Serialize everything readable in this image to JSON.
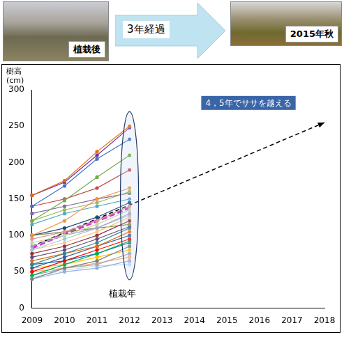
{
  "header": {
    "left_label": "植栽後",
    "arrow_label": "3年経過",
    "right_label": "2015年秋"
  },
  "chart_data": {
    "type": "line",
    "y_label": [
      "樹高",
      "(cm)"
    ],
    "annotations": [
      {
        "text": "4，5年でササを越える"
      },
      {
        "text": "植栽年"
      }
    ],
    "categories": [
      "2009",
      "2010",
      "2011",
      "2012",
      "2013",
      "2014",
      "2015",
      "2016",
      "2017",
      "2018"
    ],
    "ylim": [
      0,
      300
    ],
    "yticks": [
      0,
      50,
      100,
      150,
      200,
      250,
      300
    ],
    "grid": false,
    "marker": "circle",
    "line_style": "solid",
    "series": [
      {
        "color": "#e46c0a",
        "values": [
          155,
          175,
          215,
          250,
          null,
          null,
          null,
          null,
          null,
          null
        ]
      },
      {
        "color": "#7030a0",
        "values": [
          155,
          173,
          210,
          248,
          null,
          null,
          null,
          null,
          null,
          null
        ]
      },
      {
        "color": "#4472c4",
        "values": [
          140,
          168,
          205,
          232,
          null,
          null,
          null,
          null,
          null,
          null
        ]
      },
      {
        "color": "#70ad47",
        "values": [
          120,
          148,
          180,
          210,
          null,
          null,
          null,
          null,
          null,
          null
        ]
      },
      {
        "color": "#c0504d",
        "values": [
          140,
          150,
          165,
          190,
          null,
          null,
          null,
          null,
          null,
          null
        ]
      },
      {
        "color": "#f79646",
        "values": [
          100,
          120,
          150,
          165,
          null,
          null,
          null,
          null,
          null,
          null
        ]
      },
      {
        "color": "#9bbb59",
        "values": [
          120,
          135,
          145,
          160,
          null,
          null,
          null,
          null,
          null,
          null
        ]
      },
      {
        "color": "#8064a2",
        "values": [
          130,
          140,
          150,
          158,
          null,
          null,
          null,
          null,
          null,
          null
        ]
      },
      {
        "color": "#4bacc6",
        "values": [
          115,
          130,
          140,
          150,
          null,
          null,
          null,
          null,
          null,
          null
        ]
      },
      {
        "color": "#1f497d",
        "values": [
          100,
          110,
          125,
          145,
          null,
          null,
          null,
          null,
          null,
          null
        ]
      },
      {
        "color": "#d99694",
        "values": [
          95,
          105,
          120,
          140,
          null,
          null,
          null,
          null,
          null,
          null
        ]
      },
      {
        "color": "#c3d69b",
        "values": [
          90,
          100,
          115,
          135,
          null,
          null,
          null,
          null,
          null,
          null
        ]
      },
      {
        "color": "#b3a2c7",
        "values": [
          85,
          100,
          110,
          130,
          null,
          null,
          null,
          null,
          null,
          null
        ]
      },
      {
        "color": "#93cddd",
        "values": [
          80,
          95,
          110,
          128,
          null,
          null,
          null,
          null,
          null,
          null
        ]
      },
      {
        "color": "#fac090",
        "values": [
          80,
          90,
          105,
          125,
          null,
          null,
          null,
          null,
          null,
          null
        ]
      },
      {
        "color": "#953735",
        "values": [
          75,
          85,
          100,
          120,
          null,
          null,
          null,
          null,
          null,
          null
        ]
      },
      {
        "color": "#77933c",
        "values": [
          100,
          105,
          110,
          115,
          null,
          null,
          null,
          null,
          null,
          null
        ]
      },
      {
        "color": "#604a7b",
        "values": [
          70,
          80,
          95,
          112,
          null,
          null,
          null,
          null,
          null,
          null
        ]
      },
      {
        "color": "#31859c",
        "values": [
          60,
          75,
          90,
          110,
          null,
          null,
          null,
          null,
          null,
          null
        ]
      },
      {
        "color": "#e26b0a",
        "values": [
          65,
          75,
          85,
          105,
          null,
          null,
          null,
          null,
          null,
          null
        ]
      },
      {
        "color": "#376092",
        "values": [
          55,
          70,
          85,
          100,
          null,
          null,
          null,
          null,
          null,
          null
        ]
      },
      {
        "color": "#ff0000",
        "values": [
          50,
          65,
          80,
          95,
          null,
          null,
          null,
          null,
          null,
          null
        ]
      },
      {
        "color": "#00b050",
        "values": [
          45,
          60,
          75,
          92,
          null,
          null,
          null,
          null,
          null,
          null
        ]
      },
      {
        "color": "#0070c0",
        "values": [
          60,
          65,
          75,
          90,
          null,
          null,
          null,
          null,
          null,
          null
        ]
      },
      {
        "color": "#7f7f7f",
        "values": [
          40,
          55,
          65,
          85,
          null,
          null,
          null,
          null,
          null,
          null
        ]
      },
      {
        "color": "#ffc000",
        "values": [
          55,
          60,
          70,
          80,
          null,
          null,
          null,
          null,
          null,
          null
        ]
      },
      {
        "color": "#a5a5a5",
        "values": [
          45,
          55,
          60,
          75,
          null,
          null,
          null,
          null,
          null,
          null
        ]
      },
      {
        "color": "#f4b183",
        "values": [
          50,
          55,
          62,
          70,
          null,
          null,
          null,
          null,
          null,
          null
        ]
      },
      {
        "color": "#8eb4e3",
        "values": [
          40,
          50,
          55,
          65,
          null,
          null,
          null,
          null,
          null,
          null
        ]
      },
      {
        "color": "#c6d9f1",
        "values": [
          42,
          52,
          58,
          60,
          null,
          null,
          null,
          null,
          null,
          null
        ]
      },
      {
        "color": "#cc33cc",
        "line_style": "dashed",
        "marker": "none",
        "values": [
          83,
          102,
          120,
          138,
          null,
          null,
          null,
          null,
          null,
          null
        ]
      },
      {
        "color": "#000000",
        "line_style": "dashed",
        "marker": "arrow",
        "values": [
          85,
          null,
          null,
          null,
          null,
          null,
          null,
          null,
          null,
          255
        ]
      }
    ]
  }
}
